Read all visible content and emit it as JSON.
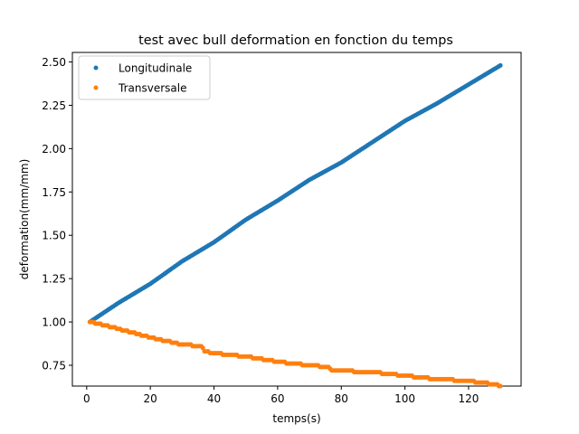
{
  "chart_data": {
    "type": "scatter",
    "title": "test avec bull deformation en fonction du temps",
    "xlabel": "temps(s)",
    "ylabel": "deformation(mm/mm)",
    "xlim": [
      -4.5,
      136.5
    ],
    "ylim": [
      0.63,
      2.555
    ],
    "xticks": [
      0,
      20,
      40,
      60,
      80,
      100,
      120
    ],
    "xtick_labels": [
      "0",
      "20",
      "40",
      "60",
      "80",
      "100",
      "120"
    ],
    "yticks": [
      0.75,
      1.0,
      1.25,
      1.5,
      1.75,
      2.0,
      2.25,
      2.5
    ],
    "ytick_labels": [
      "0.75",
      "1.00",
      "1.25",
      "1.50",
      "1.75",
      "2.00",
      "2.25",
      "2.50"
    ],
    "grid": false,
    "legend_position": "top-left",
    "series": [
      {
        "name": "Longitudinale",
        "color": "#1f77b4",
        "marker": "dot",
        "trend": "linear increase",
        "x_range": [
          1,
          130
        ],
        "y_start": 1.0,
        "y_end": 2.48,
        "sample_points": [
          [
            1,
            1.0
          ],
          [
            10,
            1.11
          ],
          [
            20,
            1.22
          ],
          [
            30,
            1.35
          ],
          [
            40,
            1.46
          ],
          [
            50,
            1.59
          ],
          [
            60,
            1.7
          ],
          [
            70,
            1.82
          ],
          [
            80,
            1.92
          ],
          [
            90,
            2.04
          ],
          [
            100,
            2.16
          ],
          [
            110,
            2.26
          ],
          [
            120,
            2.37
          ],
          [
            130,
            2.48
          ]
        ]
      },
      {
        "name": "Transversale",
        "color": "#ff7f0e",
        "marker": "dot",
        "trend": "stepwise decrease",
        "x_range": [
          1,
          130
        ],
        "y_start": 1.0,
        "y_end": 0.63,
        "sample_points": [
          [
            1,
            1.0
          ],
          [
            10,
            0.96
          ],
          [
            20,
            0.91
          ],
          [
            30,
            0.87
          ],
          [
            36,
            0.86
          ],
          [
            37,
            0.83
          ],
          [
            40,
            0.82
          ],
          [
            50,
            0.8
          ],
          [
            60,
            0.77
          ],
          [
            70,
            0.75
          ],
          [
            76,
            0.74
          ],
          [
            77,
            0.72
          ],
          [
            90,
            0.71
          ],
          [
            100,
            0.69
          ],
          [
            110,
            0.67
          ],
          [
            120,
            0.66
          ],
          [
            128,
            0.64
          ],
          [
            130,
            0.63
          ]
        ]
      }
    ]
  }
}
